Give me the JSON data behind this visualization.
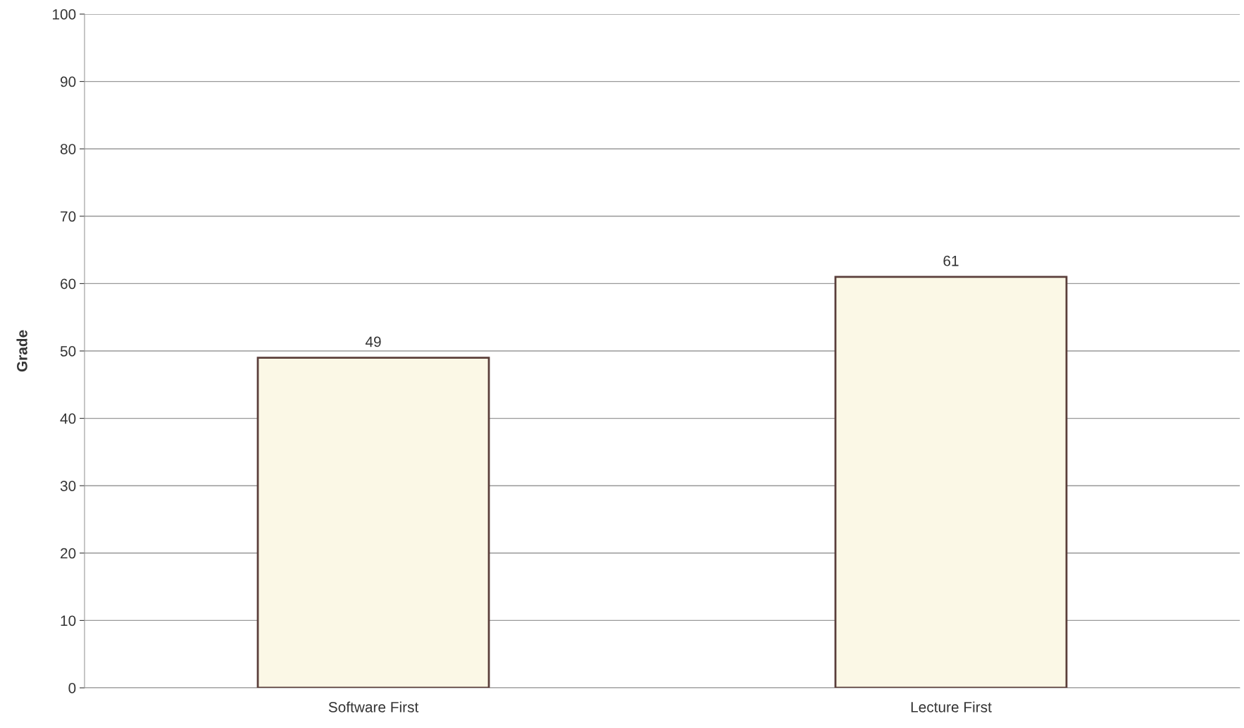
{
  "chart_data": {
    "type": "bar",
    "ylabel": "Grade",
    "categories": [
      "Software First",
      "Lecture First"
    ],
    "values": [
      49,
      61
    ],
    "color": "#fbf8e6",
    "ylim": [
      0,
      100
    ],
    "yticks": [
      0,
      10,
      20,
      30,
      40,
      50,
      60,
      70,
      80,
      90,
      100
    ],
    "grid": "y",
    "data_labels": true
  }
}
